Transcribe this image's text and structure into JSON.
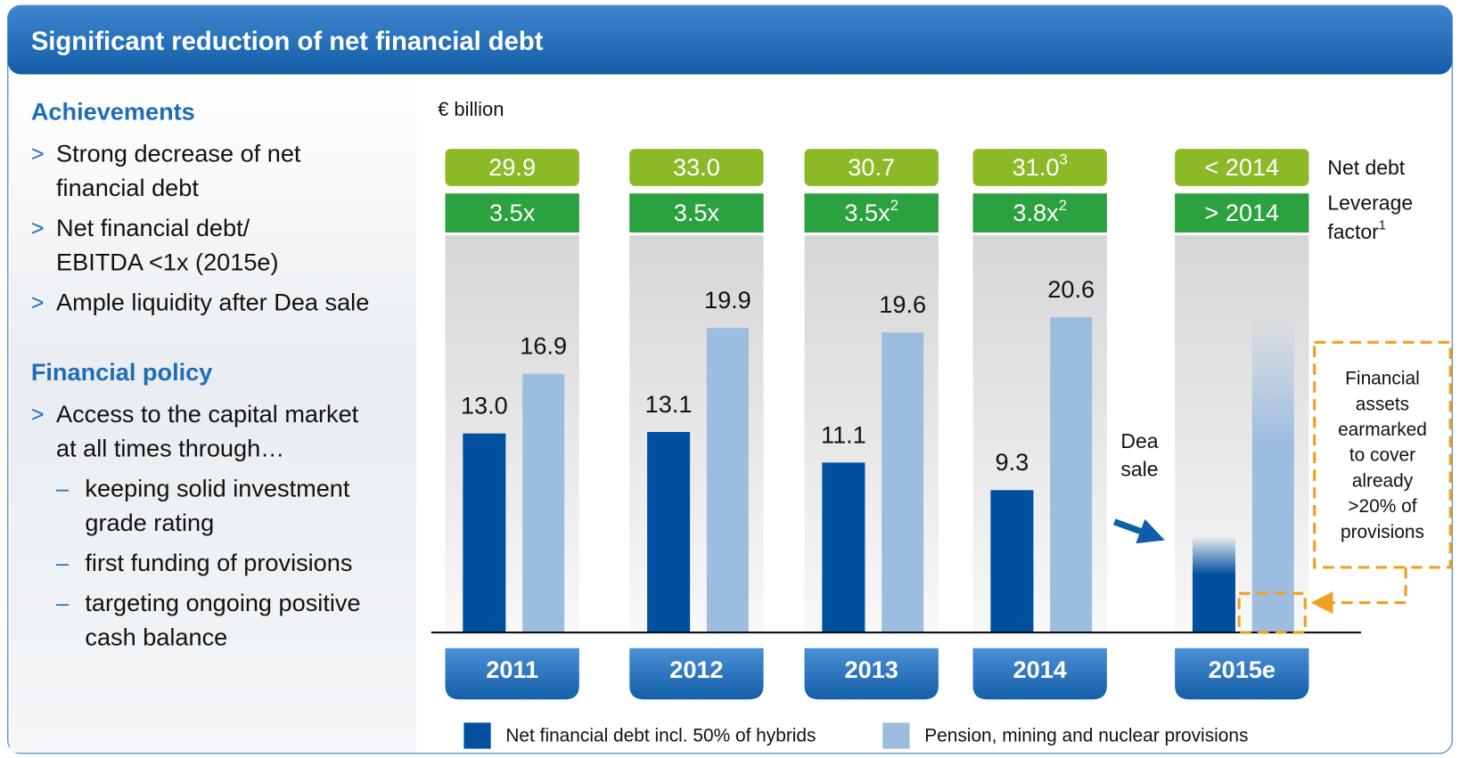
{
  "header": {
    "title": "Significant reduction of net financial debt"
  },
  "sidebar": {
    "sections": [
      {
        "heading": "Achievements",
        "items": [
          {
            "level": 1,
            "lines": [
              "Strong decrease of net",
              "financial debt"
            ]
          },
          {
            "level": 1,
            "lines": [
              "Net financial debt/",
              "EBITDA <1x (2015e)"
            ]
          },
          {
            "level": 1,
            "lines": [
              "Ample liquidity after Dea sale"
            ]
          }
        ]
      },
      {
        "heading": "Financial policy",
        "items": [
          {
            "level": 1,
            "lines": [
              "Access to the capital market",
              "at all times through…"
            ]
          },
          {
            "level": 2,
            "lines": [
              "keeping solid investment",
              "grade rating"
            ]
          },
          {
            "level": 2,
            "lines": [
              "first funding of provisions"
            ]
          },
          {
            "level": 2,
            "lines": [
              "targeting ongoing positive",
              "cash balance"
            ]
          }
        ]
      }
    ]
  },
  "chart_data": {
    "type": "bar",
    "unit": "€ billion",
    "categories": [
      "2011",
      "2012",
      "2013",
      "2014",
      "2015e"
    ],
    "estimate": [
      false,
      false,
      false,
      false,
      true
    ],
    "ylim": [
      0,
      22
    ],
    "series": [
      {
        "name": "Net financial debt incl. 50% of hybrids",
        "color": "#0050a0",
        "values": [
          13.0,
          13.1,
          11.1,
          9.3,
          6.3
        ],
        "value_labels": [
          "13.0",
          "13.1",
          "11.1",
          "9.3",
          null
        ]
      },
      {
        "name": "Pension, mining and nuclear provisions",
        "color": "#9dbde0",
        "values": [
          16.9,
          19.9,
          19.6,
          20.6,
          20.7
        ],
        "value_labels": [
          "16.9",
          "19.9",
          "19.6",
          "20.6",
          null
        ]
      }
    ],
    "rows": [
      {
        "label_lines": [
          "Net debt"
        ],
        "label_note": null,
        "color": "#8cb926",
        "values": [
          "29.9",
          "33.0",
          "30.7",
          "31.0",
          "< 2014"
        ],
        "notes": [
          null,
          null,
          null,
          "3",
          null
        ]
      },
      {
        "label_lines": [
          "Leverage",
          "factor"
        ],
        "label_note": "1",
        "color": "#2ba140",
        "values": [
          "3.5x",
          "3.5x",
          "3.5x",
          "3.8x",
          "> 2014"
        ],
        "notes": [
          null,
          null,
          "2",
          "2",
          null
        ]
      }
    ],
    "annotations": [
      {
        "lines": [
          "Dea",
          "sale"
        ]
      },
      {
        "lines": [
          "Financial",
          "assets",
          "earmarked",
          "to cover",
          "already",
          ">20% of",
          "provisions"
        ]
      }
    ]
  }
}
